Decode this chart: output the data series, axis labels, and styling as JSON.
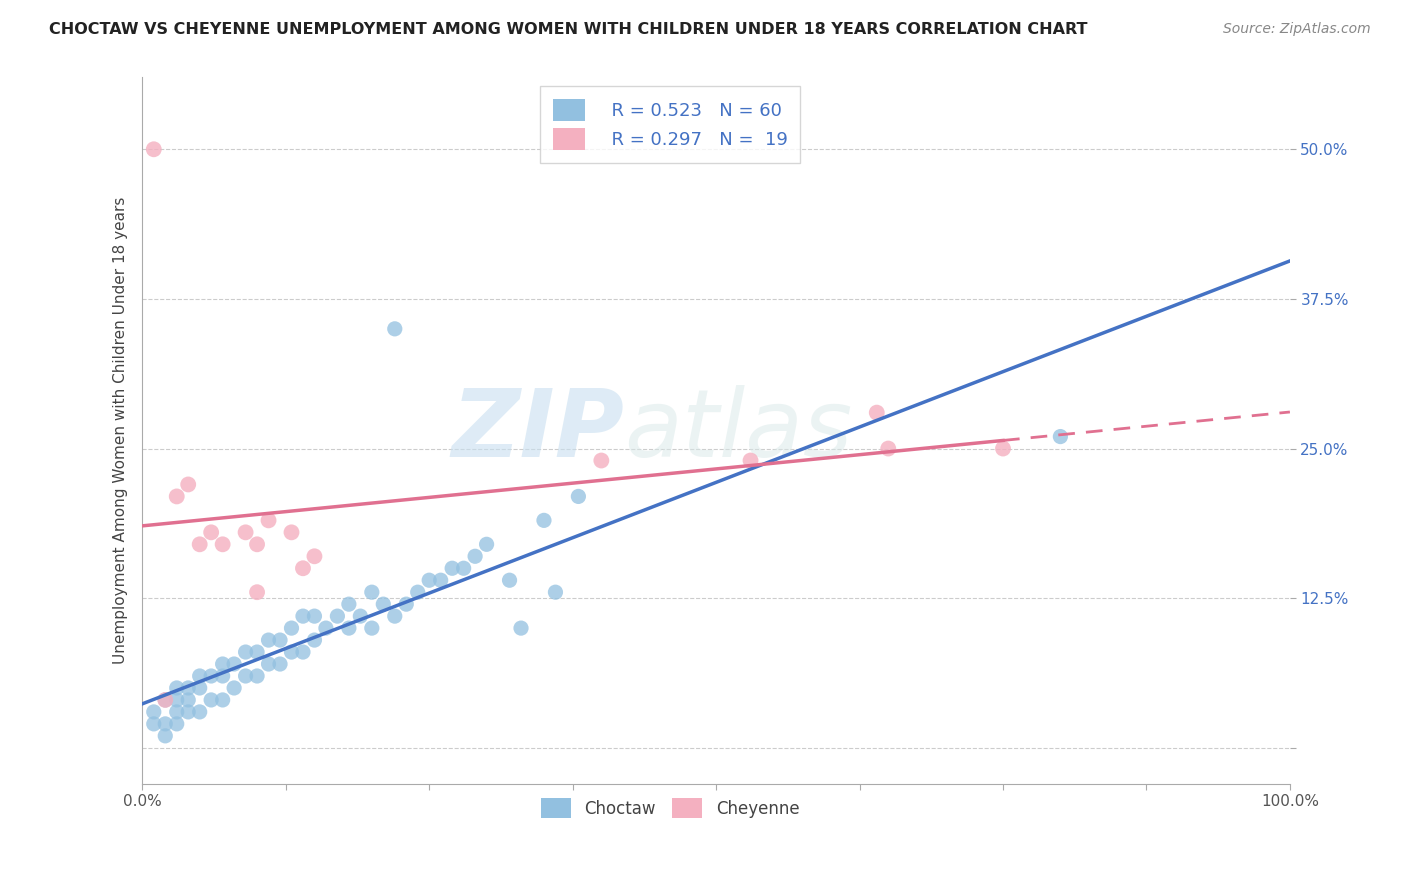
{
  "title": "CHOCTAW VS CHEYENNE UNEMPLOYMENT AMONG WOMEN WITH CHILDREN UNDER 18 YEARS CORRELATION CHART",
  "source": "Source: ZipAtlas.com",
  "ylabel": "Unemployment Among Women with Children Under 18 years",
  "xlim": [
    0.0,
    1.0
  ],
  "ylim": [
    -0.03,
    0.56
  ],
  "xticks": [
    0.0,
    0.125,
    0.25,
    0.375,
    0.5,
    0.625,
    0.75,
    0.875,
    1.0
  ],
  "xtick_labels": [
    "0.0%",
    "",
    "",
    "",
    "",
    "",
    "",
    "",
    "100.0%"
  ],
  "yticks": [
    0.0,
    0.125,
    0.25,
    0.375,
    0.5
  ],
  "ytick_labels": [
    "",
    "12.5%",
    "25.0%",
    "37.5%",
    "50.0%"
  ],
  "choctaw_color": "#92c0e0",
  "cheyenne_color": "#f4b0c0",
  "choctaw_line_color": "#4472c4",
  "cheyenne_line_color": "#e07090",
  "legend_R1": "R = 0.523",
  "legend_N1": "N = 60",
  "legend_R2": "R = 0.297",
  "legend_N2": "N =  19",
  "watermark_zip": "ZIP",
  "watermark_atlas": "atlas",
  "choctaw_x": [
    0.01,
    0.01,
    0.02,
    0.02,
    0.02,
    0.03,
    0.03,
    0.03,
    0.03,
    0.04,
    0.04,
    0.04,
    0.05,
    0.05,
    0.05,
    0.06,
    0.06,
    0.07,
    0.07,
    0.07,
    0.08,
    0.08,
    0.09,
    0.09,
    0.1,
    0.1,
    0.11,
    0.11,
    0.12,
    0.12,
    0.13,
    0.13,
    0.14,
    0.14,
    0.15,
    0.15,
    0.16,
    0.17,
    0.18,
    0.18,
    0.19,
    0.2,
    0.2,
    0.21,
    0.22,
    0.22,
    0.23,
    0.24,
    0.25,
    0.26,
    0.27,
    0.28,
    0.29,
    0.3,
    0.32,
    0.33,
    0.35,
    0.36,
    0.38,
    0.8
  ],
  "choctaw_y": [
    0.02,
    0.03,
    0.01,
    0.02,
    0.04,
    0.02,
    0.03,
    0.04,
    0.05,
    0.03,
    0.04,
    0.05,
    0.03,
    0.05,
    0.06,
    0.04,
    0.06,
    0.04,
    0.06,
    0.07,
    0.05,
    0.07,
    0.06,
    0.08,
    0.06,
    0.08,
    0.07,
    0.09,
    0.07,
    0.09,
    0.08,
    0.1,
    0.08,
    0.11,
    0.09,
    0.11,
    0.1,
    0.11,
    0.1,
    0.12,
    0.11,
    0.1,
    0.13,
    0.12,
    0.35,
    0.11,
    0.12,
    0.13,
    0.14,
    0.14,
    0.15,
    0.15,
    0.16,
    0.17,
    0.14,
    0.1,
    0.19,
    0.13,
    0.21,
    0.26
  ],
  "cheyenne_x": [
    0.01,
    0.02,
    0.03,
    0.04,
    0.05,
    0.06,
    0.07,
    0.09,
    0.1,
    0.11,
    0.13,
    0.14,
    0.15,
    0.4,
    0.53,
    0.64,
    0.65,
    0.75,
    0.1
  ],
  "cheyenne_y": [
    0.5,
    0.04,
    0.21,
    0.22,
    0.17,
    0.18,
    0.17,
    0.18,
    0.17,
    0.19,
    0.18,
    0.15,
    0.16,
    0.24,
    0.24,
    0.28,
    0.25,
    0.25,
    0.13
  ]
}
